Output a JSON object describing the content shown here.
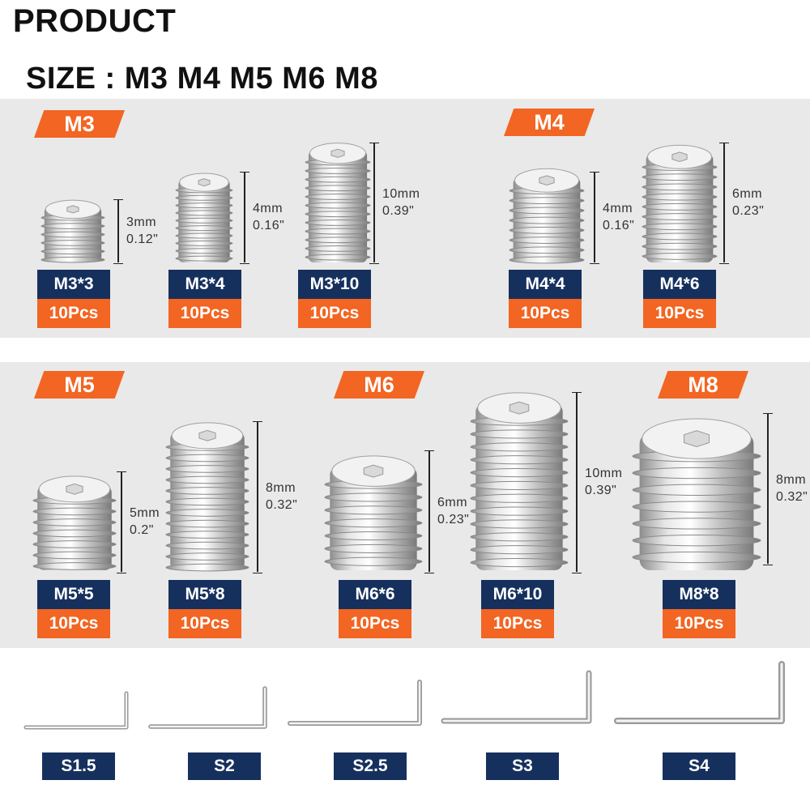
{
  "heading": "PRODUCT",
  "size_line": "SIZE : M3 M4 M5 M6 M8",
  "groups": {
    "m3": "M3",
    "m4": "M4",
    "m5": "M5",
    "m6": "M6",
    "m8": "M8"
  },
  "screws": [
    {
      "name": "M3*3",
      "qty": "10Pcs",
      "dim_mm": "3mm",
      "dim_in": "0.12\""
    },
    {
      "name": "M3*4",
      "qty": "10Pcs",
      "dim_mm": "4mm",
      "dim_in": "0.16\""
    },
    {
      "name": "M3*10",
      "qty": "10Pcs",
      "dim_mm": "10mm",
      "dim_in": "0.39\""
    },
    {
      "name": "M4*4",
      "qty": "10Pcs",
      "dim_mm": "4mm",
      "dim_in": "0.16\""
    },
    {
      "name": "M4*6",
      "qty": "10Pcs",
      "dim_mm": "6mm",
      "dim_in": "0.23\""
    },
    {
      "name": "M5*5",
      "qty": "10Pcs",
      "dim_mm": "5mm",
      "dim_in": "0.2\""
    },
    {
      "name": "M5*8",
      "qty": "10Pcs",
      "dim_mm": "8mm",
      "dim_in": "0.32\""
    },
    {
      "name": "M6*6",
      "qty": "10Pcs",
      "dim_mm": "6mm",
      "dim_in": "0.23\""
    },
    {
      "name": "M6*10",
      "qty": "10Pcs",
      "dim_mm": "10mm",
      "dim_in": "0.39\""
    },
    {
      "name": "M8*8",
      "qty": "10Pcs",
      "dim_mm": "8mm",
      "dim_in": "0.32\""
    }
  ],
  "keys": [
    "S1.5",
    "S2",
    "S2.5",
    "S3",
    "S4"
  ],
  "colors": {
    "accent": "#f26522",
    "navy": "#16305e",
    "band": "#e9e9e9"
  }
}
